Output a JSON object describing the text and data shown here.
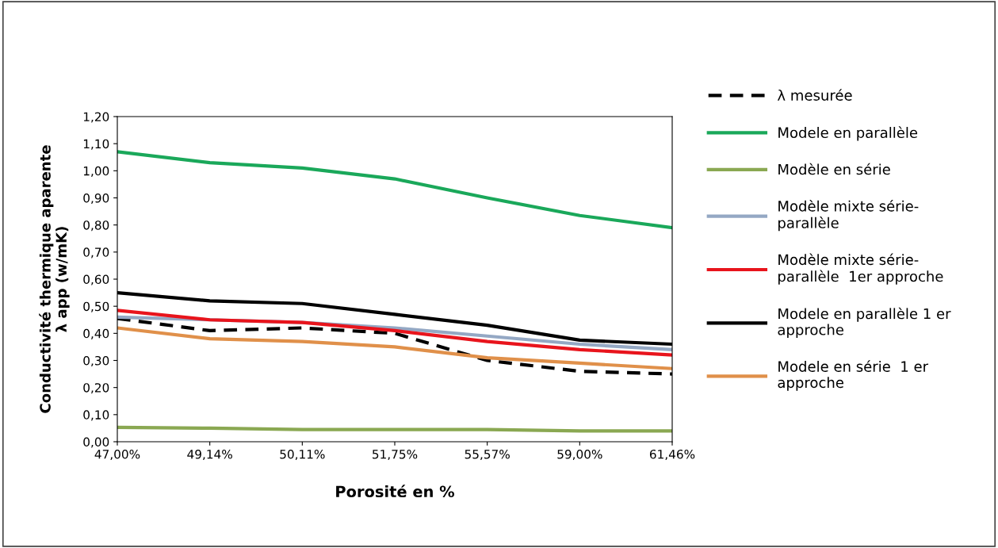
{
  "chart_data": {
    "type": "line",
    "xlabel": "Porosité en %",
    "ylabel": "Conductivité thermique aparente\nλ app (w/mK)",
    "categories": [
      "47,00%",
      "49,14%",
      "50,11%",
      "51,75%",
      "55,57%",
      "59,00%",
      "61,46%"
    ],
    "series": [
      {
        "name": "λ mesurée",
        "color": "#000000",
        "line_style": "dashed",
        "values": [
          0.455,
          0.41,
          0.42,
          0.4,
          0.3,
          0.26,
          0.25
        ]
      },
      {
        "name": "Modele en parallèle",
        "color": "#1aa85a",
        "values": [
          1.07,
          1.03,
          1.01,
          0.97,
          0.9,
          0.835,
          0.79
        ]
      },
      {
        "name": "Modèle en série",
        "color": "#8aa852",
        "values": [
          0.053,
          0.05,
          0.045,
          0.045,
          0.045,
          0.04,
          0.04
        ]
      },
      {
        "name": "Modèle mixte série-\nparallèle",
        "color": "#94a8c4",
        "values": [
          0.46,
          0.45,
          0.44,
          0.42,
          0.39,
          0.36,
          0.34
        ]
      },
      {
        "name": "Modèle mixte série-\nparallèle  1er approche",
        "color": "#e8141c",
        "values": [
          0.485,
          0.45,
          0.44,
          0.41,
          0.37,
          0.34,
          0.32
        ]
      },
      {
        "name": "Modele en parallèle 1 er\napproche",
        "color": "#000000",
        "values": [
          0.55,
          0.52,
          0.51,
          0.47,
          0.43,
          0.375,
          0.36
        ]
      },
      {
        "name": "Modele en série  1 er\napproche",
        "color": "#e0904a",
        "values": [
          0.42,
          0.38,
          0.37,
          0.35,
          0.31,
          0.29,
          0.27
        ]
      }
    ],
    "ylim": [
      0,
      1.2
    ],
    "yticks": [
      {
        "value": 0,
        "label": "0,00"
      },
      {
        "value": 0.1,
        "label": "0,10"
      },
      {
        "value": 0.2,
        "label": "0,20"
      },
      {
        "value": 0.3,
        "label": "0,30"
      },
      {
        "value": 0.4,
        "label": "0,40"
      },
      {
        "value": 0.5,
        "label": "0,50"
      },
      {
        "value": 0.6,
        "label": "0,60"
      },
      {
        "value": 0.7,
        "label": "0,70"
      },
      {
        "value": 0.8,
        "label": "0,80"
      },
      {
        "value": 0.9,
        "label": "0,90"
      },
      {
        "value": 1.0,
        "label": "1,00"
      },
      {
        "value": 1.1,
        "label": "1,10"
      },
      {
        "value": 1.2,
        "label": "1,20"
      }
    ],
    "grid": false,
    "legend": "right",
    "marker": "none"
  }
}
